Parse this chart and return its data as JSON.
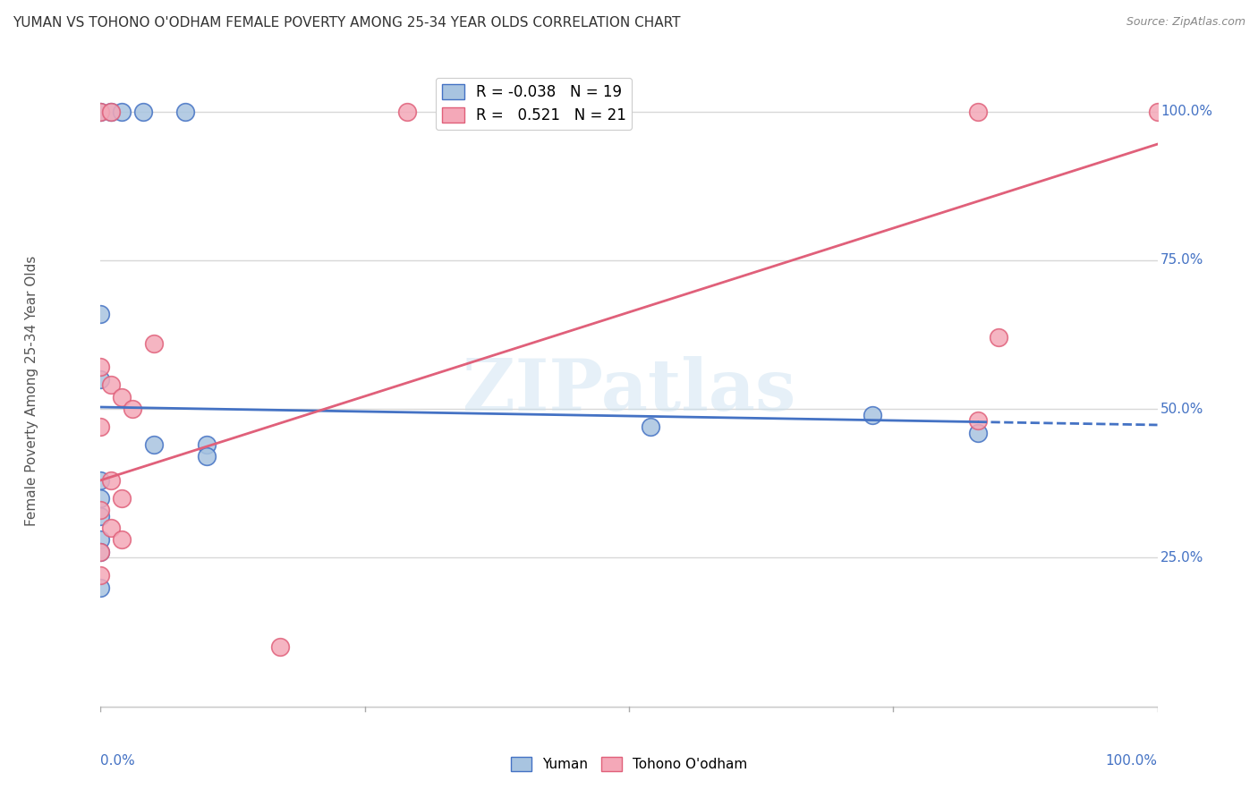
{
  "title": "YUMAN VS TOHONO O'ODHAM FEMALE POVERTY AMONG 25-34 YEAR OLDS CORRELATION CHART",
  "source": "Source: ZipAtlas.com",
  "ylabel": "Female Poverty Among 25-34 Year Olds",
  "xlim": [
    0,
    1.0
  ],
  "ylim": [
    -0.02,
    1.08
  ],
  "watermark": "ZIPatlas",
  "yuman_color": "#a8c4e0",
  "tohono_color": "#f4a8b8",
  "yuman_line_color": "#4472c4",
  "tohono_line_color": "#e0607a",
  "R_yuman": -0.038,
  "N_yuman": 19,
  "R_tohono": 0.521,
  "N_tohono": 21,
  "yuman_intercept": 0.503,
  "yuman_slope": -0.03,
  "tohono_intercept": 0.38,
  "tohono_slope": 0.565,
  "yuman_points": [
    [
      0.0,
      1.0
    ],
    [
      0.01,
      1.0
    ],
    [
      0.02,
      1.0
    ],
    [
      0.04,
      1.0
    ],
    [
      0.08,
      1.0
    ],
    [
      0.0,
      0.66
    ],
    [
      0.0,
      0.55
    ],
    [
      0.05,
      0.44
    ],
    [
      0.1,
      0.44
    ],
    [
      0.1,
      0.42
    ],
    [
      0.0,
      0.38
    ],
    [
      0.0,
      0.35
    ],
    [
      0.0,
      0.32
    ],
    [
      0.0,
      0.28
    ],
    [
      0.0,
      0.26
    ],
    [
      0.0,
      0.2
    ],
    [
      0.52,
      0.47
    ],
    [
      0.73,
      0.49
    ],
    [
      0.83,
      0.46
    ]
  ],
  "tohono_points": [
    [
      0.0,
      1.0
    ],
    [
      0.01,
      1.0
    ],
    [
      0.29,
      1.0
    ],
    [
      0.83,
      1.0
    ],
    [
      1.0,
      1.0
    ],
    [
      0.05,
      0.61
    ],
    [
      0.0,
      0.57
    ],
    [
      0.01,
      0.54
    ],
    [
      0.02,
      0.52
    ],
    [
      0.03,
      0.5
    ],
    [
      0.0,
      0.47
    ],
    [
      0.01,
      0.38
    ],
    [
      0.02,
      0.35
    ],
    [
      0.0,
      0.33
    ],
    [
      0.01,
      0.3
    ],
    [
      0.02,
      0.28
    ],
    [
      0.0,
      0.26
    ],
    [
      0.83,
      0.48
    ],
    [
      0.85,
      0.62
    ],
    [
      0.17,
      0.1
    ],
    [
      0.0,
      0.22
    ]
  ],
  "background_color": "#ffffff",
  "grid_color": "#d8d8d8",
  "grid_levels": [
    0.0,
    0.25,
    0.5,
    0.75,
    1.0
  ],
  "grid_labels": [
    "",
    "25.0%",
    "50.0%",
    "75.0%",
    "100.0%"
  ],
  "axis_color": "#4472c4"
}
